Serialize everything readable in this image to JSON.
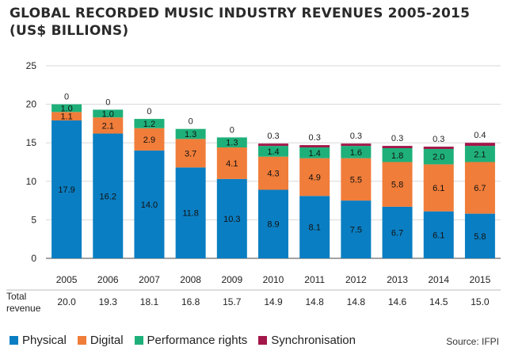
{
  "title_line1": "GLOBAL RECORDED MUSIC INDUSTRY REVENUES 2005-2015",
  "title_line2": "(US$ BILLIONS)",
  "total_label_line1": "Total",
  "total_label_line2": "revenue",
  "source": "Source: IFPI",
  "colors": {
    "physical": "#0a7ec2",
    "digital": "#f07d3a",
    "performance": "#1fb07a",
    "sync": "#a3174a",
    "axis": "#444444",
    "grid": "#d8d8d8"
  },
  "chart_data": {
    "type": "bar",
    "stacked": true,
    "categories": [
      "2005",
      "2006",
      "2007",
      "2008",
      "2009",
      "2010",
      "2011",
      "2012",
      "2013",
      "2014",
      "2015"
    ],
    "series": [
      {
        "name": "Physical",
        "values": [
          17.9,
          16.2,
          14.0,
          11.8,
          10.3,
          8.9,
          8.1,
          7.5,
          6.7,
          6.1,
          5.8
        ],
        "labels": [
          "17.9",
          "16.2",
          "14.0",
          "11.8",
          "10.3",
          "8.9",
          "8.1",
          "7.5",
          "6.7",
          "6.1",
          "5.8"
        ]
      },
      {
        "name": "Digital",
        "values": [
          1.1,
          2.1,
          2.9,
          3.7,
          4.1,
          4.3,
          4.9,
          5.5,
          5.8,
          6.1,
          6.7
        ],
        "labels": [
          "1.1",
          "2.1",
          "2.9",
          "3.7",
          "4.1",
          "4.3",
          "4.9",
          "5.5",
          "5.8",
          "6.1",
          "6.7"
        ]
      },
      {
        "name": "Performance rights",
        "values": [
          1.0,
          1.0,
          1.2,
          1.3,
          1.3,
          1.4,
          1.4,
          1.6,
          1.8,
          2.0,
          2.1
        ],
        "labels": [
          "1.0",
          "1.0",
          "1.2",
          "1.3",
          "1.3",
          "1.4",
          "1.4",
          "1.6",
          "1.8",
          "2.0",
          "2.1"
        ]
      },
      {
        "name": "Synchronisation",
        "values": [
          0,
          0,
          0,
          0,
          0,
          0.3,
          0.3,
          0.3,
          0.3,
          0.3,
          0.4
        ],
        "labels": [
          "0",
          "0",
          "0",
          "0",
          "0",
          "0.3",
          "0.3",
          "0.3",
          "0.3",
          "0.3",
          "0.4"
        ]
      }
    ],
    "totals": [
      "20.0",
      "19.3",
      "18.1",
      "16.8",
      "15.7",
      "14.9",
      "14.8",
      "14.8",
      "14.6",
      "14.5",
      "15.0"
    ],
    "yticks": [
      "0",
      "5",
      "10",
      "15",
      "20",
      "25"
    ],
    "ylim": [
      0,
      25
    ],
    "grid": true,
    "legend_position": "bottom"
  }
}
